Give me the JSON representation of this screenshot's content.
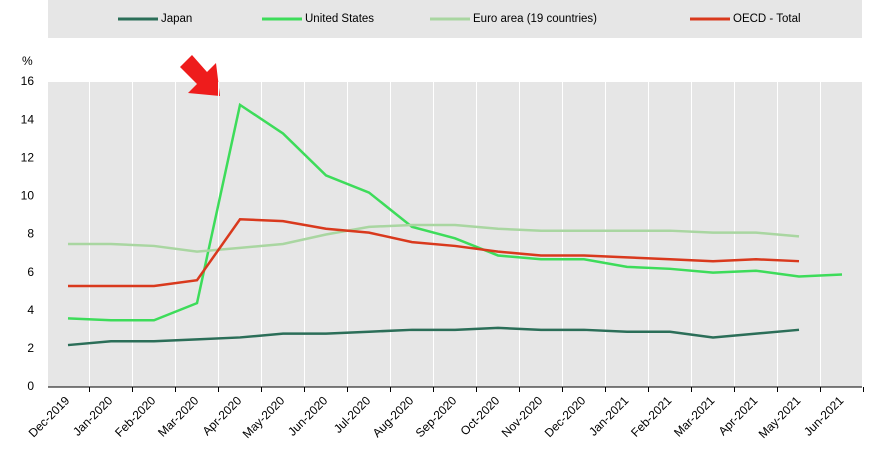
{
  "chart_data": {
    "type": "line",
    "y_label": "%",
    "categories": [
      "Dec-2019",
      "Jan-2020",
      "Feb-2020",
      "Mar-2020",
      "Apr-2020",
      "May-2020",
      "Jun-2020",
      "Jul-2020",
      "Aug-2020",
      "Sep-2020",
      "Oct-2020",
      "Nov-2020",
      "Dec-2020",
      "Jan-2021",
      "Feb-2021",
      "Mar-2021",
      "Apr-2021",
      "May-2021",
      "Jun-2021"
    ],
    "series": [
      {
        "name": "Japan",
        "color": "#2b6e58",
        "values": [
          2.2,
          2.4,
          2.4,
          2.5,
          2.6,
          2.8,
          2.8,
          2.9,
          3.0,
          3.0,
          3.1,
          3.0,
          3.0,
          2.9,
          2.9,
          2.6,
          2.8,
          3.0,
          null
        ]
      },
      {
        "name": "United States",
        "color": "#3ddc5a",
        "values": [
          3.6,
          3.5,
          3.5,
          4.4,
          14.8,
          13.3,
          11.1,
          10.2,
          8.4,
          7.8,
          6.9,
          6.7,
          6.7,
          6.3,
          6.2,
          6.0,
          6.1,
          5.8,
          5.9
        ]
      },
      {
        "name": "Euro area (19 countries)",
        "color": "#a9d6a1",
        "values": [
          7.5,
          7.5,
          7.4,
          7.1,
          7.3,
          7.5,
          8.0,
          8.4,
          8.5,
          8.5,
          8.3,
          8.2,
          8.2,
          8.2,
          8.2,
          8.1,
          8.1,
          7.9,
          null
        ]
      },
      {
        "name": "OECD - Total",
        "color": "#d9391d",
        "values": [
          5.3,
          5.3,
          5.3,
          5.6,
          8.8,
          8.7,
          8.3,
          8.1,
          7.6,
          7.4,
          7.1,
          6.9,
          6.9,
          6.8,
          6.7,
          6.6,
          6.7,
          6.6,
          null
        ]
      }
    ],
    "ylim": [
      0,
      16
    ],
    "yticks": [
      0,
      2,
      4,
      6,
      8,
      10,
      12,
      14,
      16
    ],
    "grid": true
  }
}
